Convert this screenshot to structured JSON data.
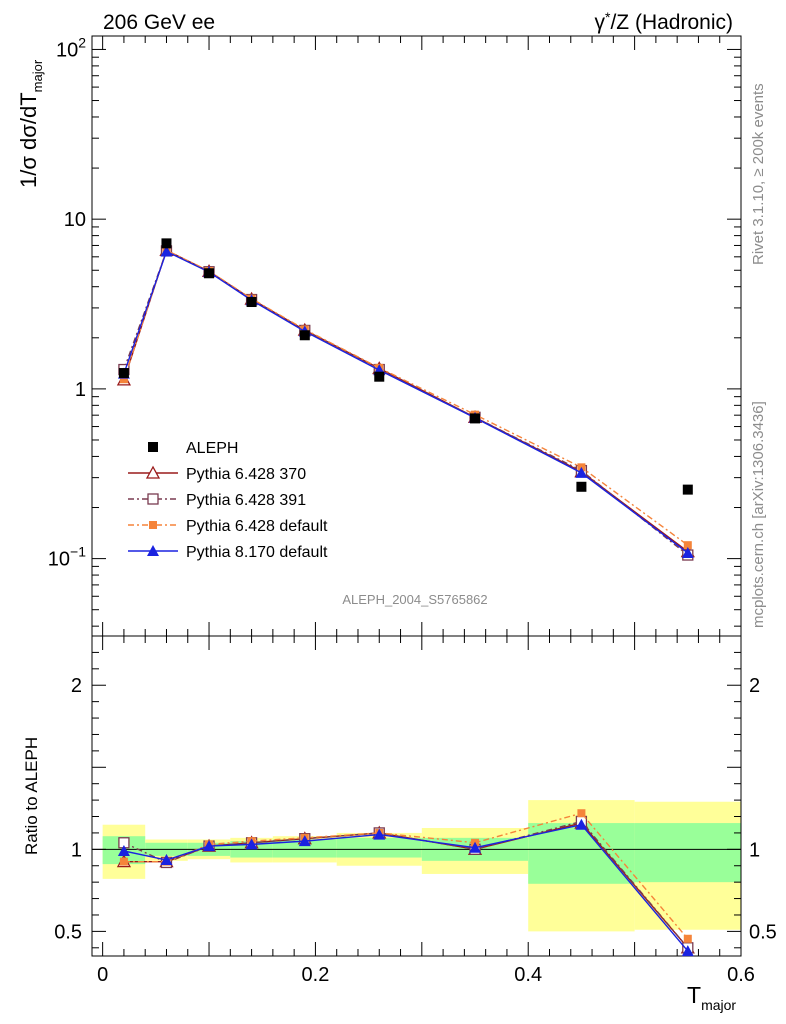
{
  "chart_data": [
    {
      "type": "line",
      "title_left": "206 GeV ee",
      "title_right": "γ*/Z (Hadronic)",
      "ylabel": "1/σ dσ/dT_major",
      "yscale": "log",
      "ylim": [
        0.035,
        120
      ],
      "xlim": [
        -0.01,
        0.6
      ],
      "ytick_labels": [
        "10^-1",
        "1",
        "10",
        "10^2"
      ],
      "watermark": "ALEPH_2004_S5765862",
      "side_label_rivet": "Rivet 3.1.10, ≥ 200k events",
      "side_label_mcplots": "mcplots.cern.ch [arXiv:1306.3436]",
      "x": [
        0.02,
        0.06,
        0.1,
        0.14,
        0.19,
        0.26,
        0.35,
        0.45,
        0.55
      ],
      "data": {
        "name": "ALEPH",
        "values": [
          1.24,
          7.2,
          4.8,
          3.25,
          2.07,
          1.18,
          0.67,
          0.265,
          0.255
        ]
      },
      "series": [
        {
          "name": "Pythia 6.428 370",
          "color": "#9a1b1b",
          "dash": "",
          "marker": "open-triangle",
          "values": [
            1.13,
            6.55,
            4.93,
            3.38,
            2.22,
            1.32,
            0.68,
            0.325,
            0.11
          ]
        },
        {
          "name": "Pythia 6.428 391",
          "color": "#7a3b50",
          "dash": "6,3,2,3",
          "marker": "open-square",
          "values": [
            1.3,
            6.5,
            4.9,
            3.36,
            2.21,
            1.3,
            0.68,
            0.33,
            0.105
          ]
        },
        {
          "name": "Pythia 6.428 default",
          "color": "#f5843a",
          "dash": "6,3,2,3",
          "marker": "filled-square",
          "values": [
            1.14,
            6.55,
            4.95,
            3.4,
            2.24,
            1.33,
            0.705,
            0.345,
            0.12
          ]
        },
        {
          "name": "Pythia 8.170 default",
          "color": "#1a22e0",
          "dash": "",
          "marker": "filled-triangle",
          "values": [
            1.23,
            6.45,
            4.88,
            3.33,
            2.18,
            1.29,
            0.675,
            0.32,
            0.108
          ]
        }
      ]
    },
    {
      "type": "line",
      "ylabel": "Ratio to ALEPH",
      "xlabel": "T_major",
      "ylim": [
        0.35,
        2.3
      ],
      "xlim": [
        -0.01,
        0.6
      ],
      "xtick_labels": [
        "0",
        "0.2",
        "0.4",
        "0.6"
      ],
      "ytick_labels": [
        "0.5",
        "1",
        "2"
      ],
      "bins": [
        {
          "lo": 0.0,
          "hi": 0.04,
          "stat": [
            0.91,
            1.08
          ],
          "total": [
            0.82,
            1.15
          ]
        },
        {
          "lo": 0.04,
          "hi": 0.08,
          "stat": [
            0.96,
            1.04
          ],
          "total": [
            0.93,
            1.06
          ]
        },
        {
          "lo": 0.08,
          "hi": 0.12,
          "stat": [
            0.96,
            1.04
          ],
          "total": [
            0.94,
            1.06
          ]
        },
        {
          "lo": 0.12,
          "hi": 0.16,
          "stat": [
            0.95,
            1.05
          ],
          "total": [
            0.92,
            1.07
          ]
        },
        {
          "lo": 0.16,
          "hi": 0.22,
          "stat": [
            0.95,
            1.06
          ],
          "total": [
            0.92,
            1.08
          ]
        },
        {
          "lo": 0.22,
          "hi": 0.3,
          "stat": [
            0.95,
            1.07
          ],
          "total": [
            0.9,
            1.1
          ]
        },
        {
          "lo": 0.3,
          "hi": 0.4,
          "stat": [
            0.93,
            1.07
          ],
          "total": [
            0.85,
            1.13
          ]
        },
        {
          "lo": 0.4,
          "hi": 0.5,
          "stat": [
            0.79,
            1.16
          ],
          "total": [
            0.5,
            1.3
          ]
        },
        {
          "lo": 0.5,
          "hi": 0.6,
          "stat": [
            0.8,
            1.16
          ],
          "total": [
            0.51,
            1.29
          ]
        }
      ],
      "series": [
        {
          "name": "Pythia 6.428 370",
          "values": [
            0.925,
            0.925,
            1.02,
            1.04,
            1.065,
            1.1,
            1.0,
            1.16,
            0.4
          ]
        },
        {
          "name": "Pythia 6.428 391",
          "values": [
            1.04,
            0.92,
            1.02,
            1.04,
            1.065,
            1.1,
            1.0,
            1.17,
            0.4
          ]
        },
        {
          "name": "Pythia 6.428 default",
          "values": [
            0.925,
            0.925,
            1.03,
            1.05,
            1.07,
            1.1,
            1.04,
            1.22,
            0.455
          ]
        },
        {
          "name": "Pythia 8.170 default",
          "values": [
            0.99,
            0.935,
            1.02,
            1.03,
            1.05,
            1.09,
            1.01,
            1.15,
            0.38
          ]
        }
      ]
    }
  ]
}
